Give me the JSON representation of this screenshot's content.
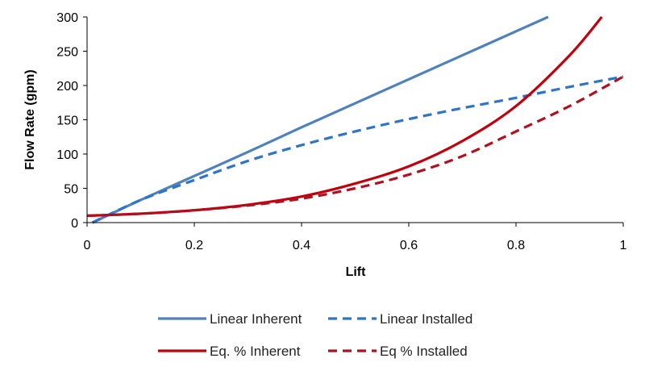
{
  "chart_data": {
    "type": "line",
    "title": "",
    "xlabel": "Lift",
    "ylabel": "Flow Rate (gpm)",
    "xlim": [
      0,
      1
    ],
    "ylim": [
      0,
      300
    ],
    "x_ticks": [
      "0",
      "0.2",
      "0.4",
      "0.6",
      "0.8",
      "1"
    ],
    "y_ticks": [
      "0",
      "50",
      "100",
      "150",
      "200",
      "250",
      "300"
    ],
    "grid": false,
    "legend_position": "bottom",
    "series": [
      {
        "name": "Linear Inherent",
        "color": "#4F81BD",
        "dash": "solid",
        "x": [
          0.01,
          0.1,
          0.2,
          0.3,
          0.4,
          0.5,
          0.6,
          0.7,
          0.8,
          0.86
        ],
        "y": [
          0,
          33,
          68,
          103,
          139,
          174,
          209,
          244,
          279,
          300
        ]
      },
      {
        "name": "Linear Installed",
        "color": "#2E75C8",
        "dash": "dashed",
        "x": [
          0.01,
          0.1,
          0.2,
          0.3,
          0.4,
          0.5,
          0.6,
          0.7,
          0.8,
          0.9,
          1.0
        ],
        "y": [
          0,
          33,
          62,
          90,
          113,
          133,
          151,
          167,
          182,
          198,
          213
        ]
      },
      {
        "name": "Eq. % Inherent",
        "color": "#C0000C",
        "dash": "solid",
        "x": [
          0,
          0.1,
          0.2,
          0.3,
          0.4,
          0.5,
          0.6,
          0.7,
          0.8,
          0.9,
          0.96
        ],
        "y": [
          10,
          13,
          18,
          26,
          38,
          57,
          82,
          119,
          170,
          244,
          300
        ]
      },
      {
        "name": "Eq % Installed",
        "color": "#B01020",
        "dash": "dashed",
        "x": [
          0,
          0.1,
          0.2,
          0.3,
          0.4,
          0.5,
          0.6,
          0.7,
          0.8,
          0.9,
          1.0
        ],
        "y": [
          10,
          13,
          18,
          25,
          35,
          50,
          70,
          97,
          133,
          170,
          213
        ]
      }
    ]
  }
}
